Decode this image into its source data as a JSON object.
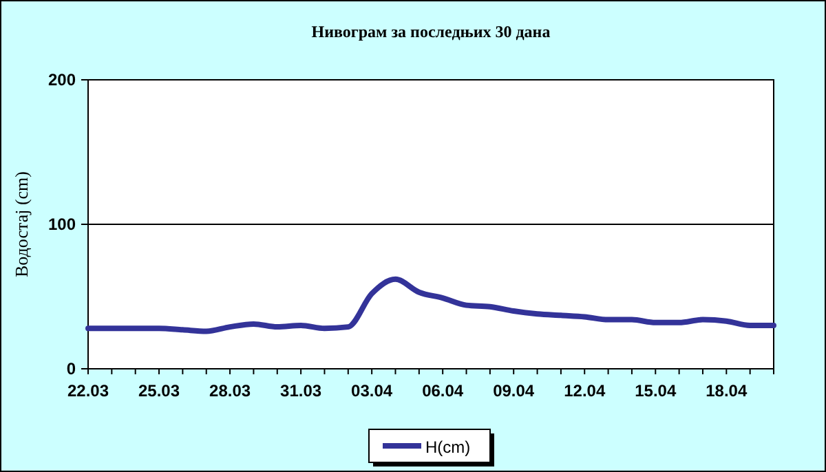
{
  "chart_data": {
    "type": "line",
    "title": "Нивограм за последњих 30 дана",
    "ylabel": "Водостај (cm)",
    "categories": [
      "22.03",
      null,
      null,
      "25.03",
      null,
      null,
      "28.03",
      null,
      null,
      "31.03",
      null,
      null,
      "03.04",
      null,
      null,
      "06.04",
      null,
      null,
      "09.04",
      null,
      null,
      "12.04",
      null,
      null,
      "15.04",
      null,
      null,
      "18.04",
      null,
      null
    ],
    "series": [
      {
        "name": "H(cm)",
        "color": "#333399",
        "values": [
          28,
          28,
          28,
          28,
          27,
          26,
          29,
          31,
          29,
          30,
          28,
          29,
          52,
          62,
          53,
          49,
          44,
          43,
          40,
          38,
          37,
          36,
          34,
          34,
          32,
          32,
          34,
          33,
          30,
          30
        ]
      }
    ],
    "ylim": [
      0,
      200
    ],
    "yticks": [
      0,
      100,
      200
    ],
    "grid": "y",
    "legend": "bottom",
    "marker": "none",
    "line_style": "solid"
  }
}
